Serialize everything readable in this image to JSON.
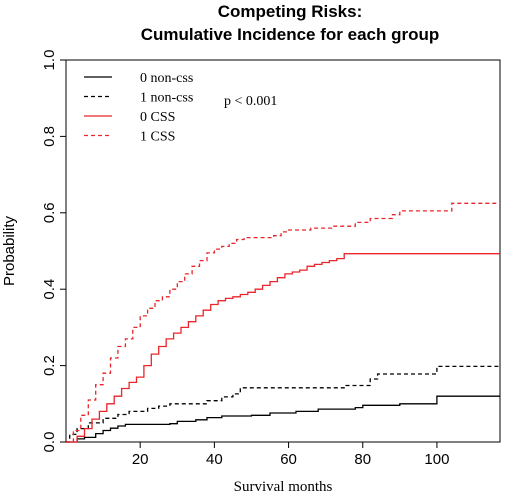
{
  "chart_data": {
    "type": "line",
    "title_line1": "Competing Risks:",
    "title_line2": "Cumulative Incidence for each group",
    "xlabel": "Survival months",
    "ylabel": "Probability",
    "xlim": [
      0,
      117
    ],
    "ylim": [
      0,
      1.0
    ],
    "x_ticks": [
      20,
      40,
      60,
      80,
      100
    ],
    "y_ticks": [
      "0.0",
      "0.2",
      "0.4",
      "0.6",
      "0.8",
      "1.0"
    ],
    "annotation": "p < 0.001",
    "legend_position": "top-left",
    "grid": false,
    "series": [
      {
        "name": "0 non-css",
        "color": "#000000",
        "dash": "solid",
        "points": [
          [
            0,
            0
          ],
          [
            3,
            0.008
          ],
          [
            5,
            0.012
          ],
          [
            8,
            0.022
          ],
          [
            10,
            0.03
          ],
          [
            12,
            0.036
          ],
          [
            14,
            0.042
          ],
          [
            16,
            0.046
          ],
          [
            28,
            0.048
          ],
          [
            30,
            0.054
          ],
          [
            35,
            0.058
          ],
          [
            38,
            0.064
          ],
          [
            42,
            0.068
          ],
          [
            50,
            0.07
          ],
          [
            55,
            0.076
          ],
          [
            62,
            0.08
          ],
          [
            68,
            0.086
          ],
          [
            78,
            0.09
          ],
          [
            80,
            0.096
          ],
          [
            90,
            0.1
          ],
          [
            100,
            0.12
          ],
          [
            117,
            0.12
          ]
        ]
      },
      {
        "name": "1 non-css",
        "color": "#000000",
        "dash": "dashed",
        "points": [
          [
            0,
            0
          ],
          [
            1,
            0.02
          ],
          [
            3,
            0.035
          ],
          [
            6,
            0.05
          ],
          [
            10,
            0.062
          ],
          [
            14,
            0.072
          ],
          [
            17,
            0.08
          ],
          [
            22,
            0.088
          ],
          [
            25,
            0.094
          ],
          [
            28,
            0.1
          ],
          [
            38,
            0.108
          ],
          [
            42,
            0.118
          ],
          [
            45,
            0.126
          ],
          [
            47,
            0.142
          ],
          [
            75,
            0.148
          ],
          [
            82,
            0.165
          ],
          [
            84,
            0.178
          ],
          [
            100,
            0.198
          ],
          [
            117,
            0.198
          ]
        ]
      },
      {
        "name": "0 CSS",
        "color": "#e8262b",
        "dash": "solid",
        "points": [
          [
            0,
            0
          ],
          [
            3,
            0.015
          ],
          [
            5,
            0.035
          ],
          [
            7,
            0.06
          ],
          [
            9,
            0.08
          ],
          [
            11,
            0.1
          ],
          [
            13,
            0.12
          ],
          [
            15,
            0.14
          ],
          [
            17,
            0.156
          ],
          [
            19,
            0.17
          ],
          [
            21,
            0.2
          ],
          [
            23,
            0.23
          ],
          [
            25,
            0.25
          ],
          [
            27,
            0.27
          ],
          [
            29,
            0.285
          ],
          [
            31,
            0.3
          ],
          [
            33,
            0.315
          ],
          [
            35,
            0.33
          ],
          [
            37,
            0.345
          ],
          [
            39,
            0.36
          ],
          [
            41,
            0.37
          ],
          [
            43,
            0.376
          ],
          [
            45,
            0.38
          ],
          [
            47,
            0.386
          ],
          [
            49,
            0.392
          ],
          [
            51,
            0.4
          ],
          [
            53,
            0.41
          ],
          [
            55,
            0.42
          ],
          [
            57,
            0.43
          ],
          [
            59,
            0.44
          ],
          [
            61,
            0.445
          ],
          [
            63,
            0.45
          ],
          [
            65,
            0.46
          ],
          [
            67,
            0.465
          ],
          [
            69,
            0.47
          ],
          [
            71,
            0.475
          ],
          [
            73,
            0.48
          ],
          [
            75,
            0.493
          ],
          [
            117,
            0.493
          ]
        ]
      },
      {
        "name": "1 CSS",
        "color": "#e8262b",
        "dash": "dashed",
        "points": [
          [
            0,
            0
          ],
          [
            2,
            0.03
          ],
          [
            4,
            0.07
          ],
          [
            6,
            0.11
          ],
          [
            8,
            0.15
          ],
          [
            10,
            0.18
          ],
          [
            12,
            0.22
          ],
          [
            14,
            0.25
          ],
          [
            16,
            0.27
          ],
          [
            18,
            0.3
          ],
          [
            20,
            0.33
          ],
          [
            22,
            0.35
          ],
          [
            24,
            0.37
          ],
          [
            26,
            0.38
          ],
          [
            28,
            0.4
          ],
          [
            30,
            0.42
          ],
          [
            32,
            0.44
          ],
          [
            34,
            0.46
          ],
          [
            36,
            0.475
          ],
          [
            38,
            0.495
          ],
          [
            40,
            0.505
          ],
          [
            42,
            0.512
          ],
          [
            44,
            0.52
          ],
          [
            46,
            0.53
          ],
          [
            48,
            0.535
          ],
          [
            56,
            0.54
          ],
          [
            58,
            0.55
          ],
          [
            60,
            0.555
          ],
          [
            66,
            0.56
          ],
          [
            72,
            0.565
          ],
          [
            78,
            0.575
          ],
          [
            82,
            0.585
          ],
          [
            88,
            0.595
          ],
          [
            90,
            0.605
          ],
          [
            104,
            0.625
          ],
          [
            117,
            0.625
          ]
        ]
      }
    ]
  }
}
